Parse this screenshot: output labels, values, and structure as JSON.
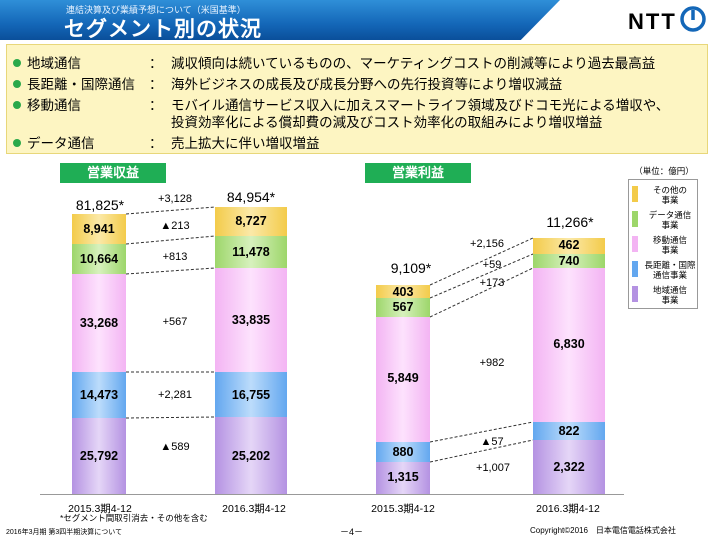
{
  "header": {
    "subtitle": "連結決算及び業績予想について（米国基準）",
    "title": "セグメント別の状況",
    "logo": "NTT"
  },
  "summary": [
    {
      "label": "地域通信",
      "colon": "：",
      "text": "減収傾向は続いているものの、マーケティングコストの削減等により過去最高益"
    },
    {
      "label": "長距離・国際通信",
      "colon": "：",
      "text": "海外ビジネスの成長及び成長分野への先行投資等により増収減益"
    },
    {
      "label": "移動通信",
      "colon": "：",
      "text": "モバイル通信サービス収入に加えスマートライフ領域及びドコモ光による増収や、",
      "text2": "投資効率化による償却費の減及びコスト効率化の取組みにより増収増益"
    },
    {
      "label": "データ通信",
      "colon": "：",
      "text": "売上拡大に伴い増収増益"
    }
  ],
  "revenue": {
    "label": "営業収益",
    "before_total": "81,825*",
    "after_total": "84,954*",
    "before": [
      "8,941",
      "10,664",
      "33,268",
      "14,473",
      "25,792"
    ],
    "after": [
      "8,727",
      "11,478",
      "33,835",
      "16,755",
      "25,202"
    ],
    "total_delta": "+3,128",
    "deltas": [
      "▲213",
      "+813",
      "+567",
      "+2,281",
      "▲589"
    ],
    "xlabels": [
      "2015.3期4-12",
      "2016.3期4-12"
    ]
  },
  "profit": {
    "label": "営業利益",
    "before_total": "9,109*",
    "after_total": "11,266*",
    "before": [
      "403",
      "567",
      "5,849",
      "880",
      "1,315"
    ],
    "after": [
      "462",
      "740",
      "6,830",
      "822",
      "2,322"
    ],
    "total_delta": "+2,156",
    "deltas": [
      "+59",
      "+173",
      "+982",
      "▲57",
      "+1,007"
    ],
    "xlabels": [
      "2015.3期4-12",
      "2016.3期4-12"
    ]
  },
  "legend": {
    "unit": "（単位：億円）",
    "items": [
      {
        "l1": "その他の",
        "l2": "事業",
        "color": "#f3cb4a"
      },
      {
        "l1": "データ通信",
        "l2": "事業",
        "color": "#9dd66a"
      },
      {
        "l1": "移動通信",
        "l2": "事業",
        "color": "#f3b4f3"
      },
      {
        "l1": "長距離・国際",
        "l2": "通信事業",
        "color": "#63a7ef"
      },
      {
        "l1": "地域通信",
        "l2": "事業",
        "color": "#b492e2"
      }
    ]
  },
  "footer": {
    "note": "*セグメント間取引消去・その他を含む",
    "left": "2016年3月期 第3四半期決算について",
    "page": "－4－",
    "right": "Copyright©2016　日本電信電話株式会社"
  },
  "colors": {
    "other": "#f3cb4a",
    "data": "#9dd66a",
    "mobile": "#f3b4f3",
    "longdistance": "#63a7ef",
    "regional": "#b492e2",
    "accent": "#1fae55"
  }
}
